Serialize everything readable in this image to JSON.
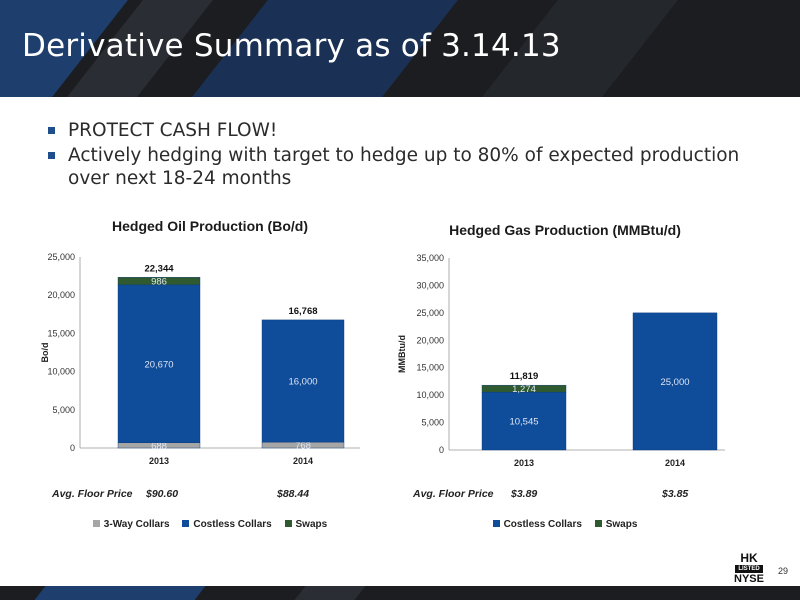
{
  "slide": {
    "title": "Derivative Summary as of 3.14.13",
    "bullets": [
      "PROTECT CASH FLOW!",
      "Actively hedging with target to hedge up to 80% of expected production over next 18-24 months"
    ],
    "page_number": "29",
    "logo": {
      "top": "HK",
      "middle": "LISTED",
      "bottom": "NYSE"
    }
  },
  "colors": {
    "three_way": "#a6a6a6",
    "costless": "#0f4c99",
    "swaps": "#2f5a30",
    "header": "#1c1d20"
  },
  "chart_data": [
    {
      "type": "bar",
      "stacked": true,
      "title": "Hedged Oil Production (Bo/d)",
      "ylabel": "Bo/d",
      "ylim": [
        0,
        25000
      ],
      "yticks": [
        "0",
        "5,000",
        "10,000",
        "15,000",
        "20,000",
        "25,000"
      ],
      "categories": [
        "2013",
        "2014"
      ],
      "series": [
        {
          "name": "3-Way Collars",
          "values": [
            688,
            768
          ],
          "labels": [
            "688",
            "768"
          ],
          "color": "#a6a6a6"
        },
        {
          "name": "Costless Collars",
          "values": [
            20670,
            16000
          ],
          "labels": [
            "20,670",
            "16,000"
          ],
          "color": "#0f4c99"
        },
        {
          "name": "Swaps",
          "values": [
            986,
            0
          ],
          "labels": [
            "986",
            ""
          ],
          "color": "#2f5a30"
        }
      ],
      "totals": [
        "22,344",
        "16,768"
      ],
      "floor_label": "Avg. Floor Price",
      "floor_prices": [
        "$90.60",
        "$88.44"
      ],
      "legend_position": "bottom"
    },
    {
      "type": "bar",
      "stacked": true,
      "title": "Hedged Gas Production (MMBtu/d)",
      "ylabel": "MMBtu/d",
      "ylim": [
        0,
        35000
      ],
      "yticks": [
        "0",
        "5,000",
        "10,000",
        "15,000",
        "20,000",
        "25,000",
        "30,000",
        "35,000"
      ],
      "categories": [
        "2013",
        "2014"
      ],
      "series": [
        {
          "name": "Costless Collars",
          "values": [
            10545,
            25000
          ],
          "labels": [
            "10,545",
            "25,000"
          ],
          "color": "#0f4c99"
        },
        {
          "name": "Swaps",
          "values": [
            1274,
            0
          ],
          "labels": [
            "1,274",
            ""
          ],
          "color": "#2f5a30"
        }
      ],
      "totals": [
        "11,819",
        ""
      ],
      "floor_label": "Avg. Floor Price",
      "floor_prices": [
        "$3.89",
        "$3.85"
      ],
      "legend_position": "bottom"
    }
  ]
}
